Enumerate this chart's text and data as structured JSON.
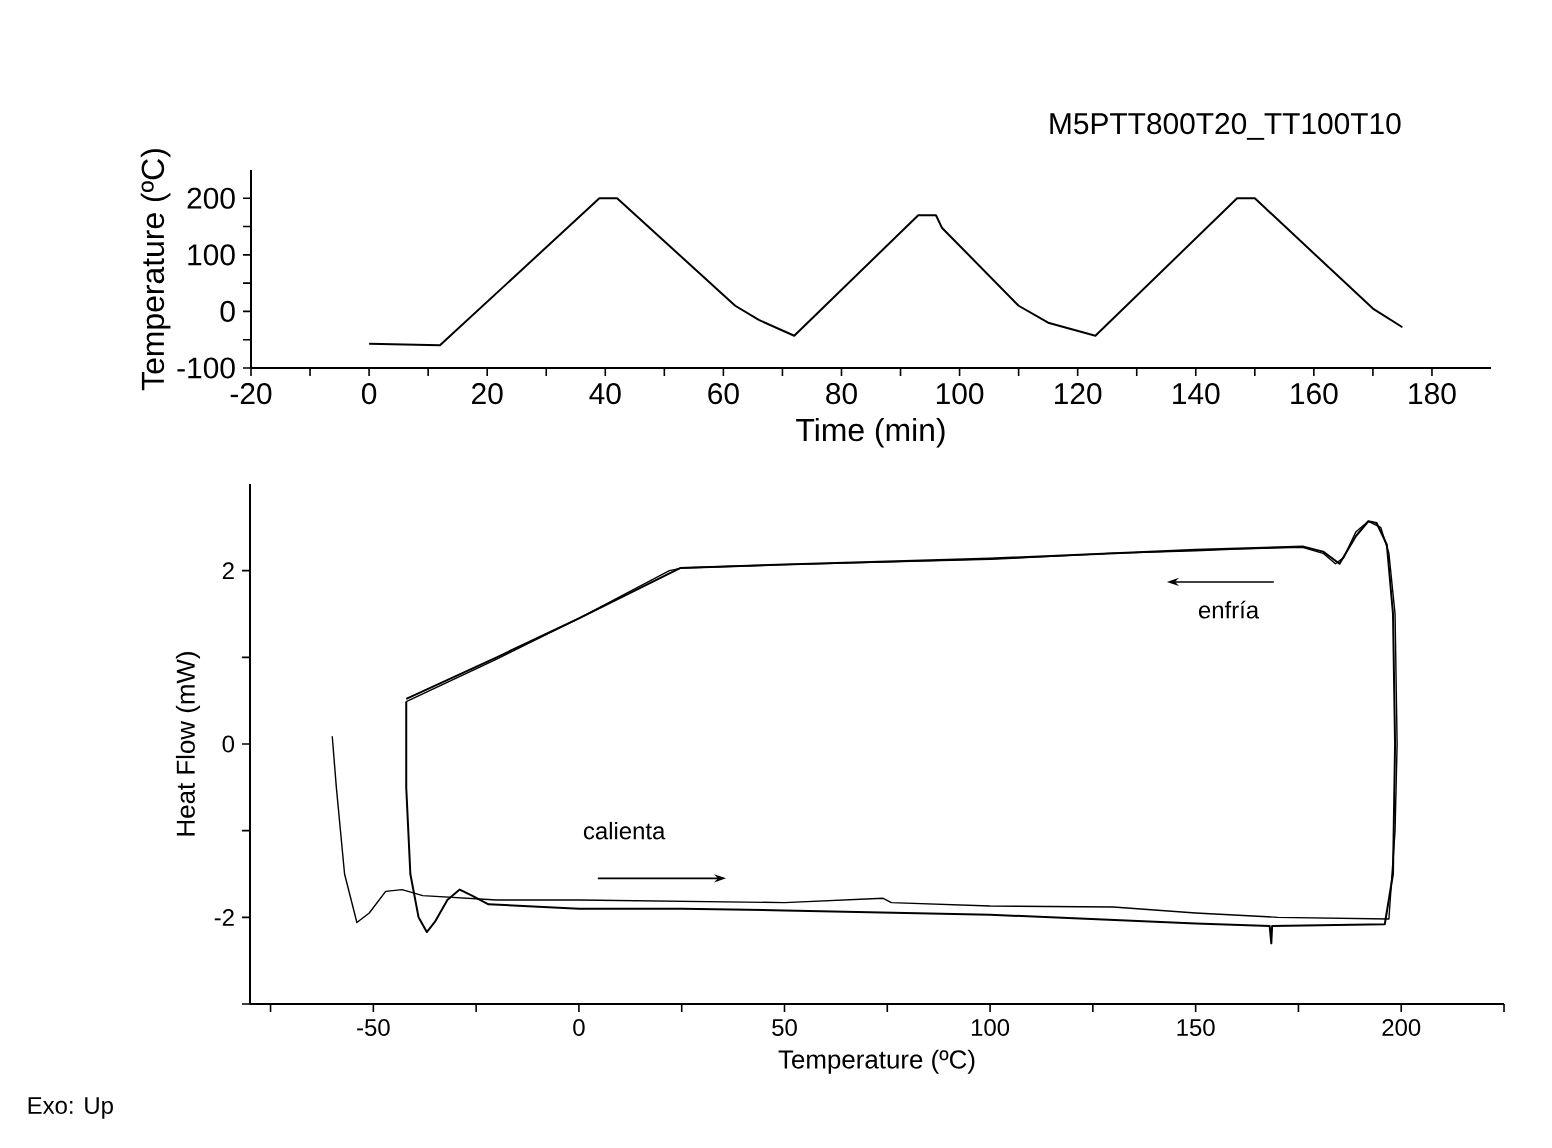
{
  "chart_data": [
    {
      "type": "line",
      "xlabel": "Time (min)",
      "ylabel": "Temperature (ºC)",
      "annotations": [
        "M5PTT800T20_TT100T10"
      ],
      "xlim": [
        -20,
        190
      ],
      "ylim": [
        -100,
        250
      ],
      "xticks": [
        -20,
        0,
        20,
        40,
        60,
        80,
        100,
        120,
        140,
        160,
        180,
        {
          "value": -10,
          "label": null
        },
        {
          "value": 10,
          "label": null
        },
        {
          "value": 30,
          "label": null
        },
        {
          "value": 50,
          "label": null
        },
        {
          "value": 70,
          "label": null
        },
        {
          "value": 90,
          "label": null
        },
        {
          "value": 110,
          "label": null
        },
        {
          "value": 130,
          "label": null
        },
        {
          "value": 150,
          "label": null
        },
        {
          "value": 170,
          "label": null
        }
      ],
      "yticks": [
        -100,
        0,
        100,
        200,
        {
          "value": -50,
          "label": null
        },
        {
          "value": 50,
          "label": null
        },
        {
          "value": 150,
          "label": null
        }
      ],
      "grid": false,
      "marker": "none",
      "line_style": "solid",
      "series": [
        {
          "color": "#000000",
          "x": [
            0,
            12,
            39,
            42,
            62,
            66,
            72,
            93,
            96,
            97,
            110,
            115,
            123,
            147,
            150,
            170,
            175
          ],
          "values": [
            -57,
            -60,
            200,
            200,
            10,
            -15,
            -43,
            170,
            170,
            148,
            10,
            -20,
            -43,
            200,
            200,
            5,
            -28
          ]
        }
      ]
    },
    {
      "type": "line",
      "xlabel": "Temperature (ºC)",
      "ylabel": "Heat Flow (mW)",
      "annotations": [
        "enfría",
        "calienta",
        "Exo: Up"
      ],
      "xlim": [
        -80,
        225
      ],
      "ylim": [
        -3,
        3
      ],
      "xticks": [
        -50,
        0,
        50,
        100,
        150,
        200,
        {
          "value": -75,
          "label": null
        },
        {
          "value": -25,
          "label": null
        },
        {
          "value": 25,
          "label": null
        },
        {
          "value": 75,
          "label": null
        },
        {
          "value": 125,
          "label": null
        },
        {
          "value": 175,
          "label": null
        },
        {
          "value": 225,
          "label": null
        }
      ],
      "yticks": [
        -2,
        0,
        2,
        {
          "value": -3,
          "label": null
        },
        {
          "value": -1,
          "label": null
        },
        {
          "value": 1,
          "label": null
        }
      ],
      "grid": false,
      "marker": "none",
      "line_style": "solid",
      "series": [
        {
          "color": "#000000",
          "x": [
            -60,
            -59,
            -57,
            -54,
            -51,
            -47,
            -43,
            -38,
            -20,
            0,
            50,
            74,
            76,
            100,
            130,
            150,
            170,
            197,
            198.5,
            199,
            198.5,
            197,
            195,
            192,
            189,
            186,
            184,
            181,
            176,
            160,
            150,
            129,
            100,
            50,
            25,
            22,
            0,
            -20,
            -42
          ],
          "values": [
            0.09,
            -0.5,
            -1.5,
            -2.06,
            -1.95,
            -1.7,
            -1.68,
            -1.75,
            -1.8,
            -1.8,
            -1.83,
            -1.78,
            -1.83,
            -1.87,
            -1.88,
            -1.95,
            -2.0,
            -2.02,
            -1.0,
            0,
            1.5,
            2.2,
            2.5,
            2.57,
            2.45,
            2.15,
            2.08,
            2.2,
            2.27,
            2.25,
            2.23,
            2.2,
            2.13,
            2.07,
            2.03,
            2.0,
            1.45,
            0.98,
            0.49
          ]
        },
        {
          "color": "#000000",
          "x": [
            -42,
            -42,
            -41,
            -39,
            -37,
            -35,
            -32,
            -29,
            -26,
            -22,
            0,
            25,
            50,
            100,
            150,
            168,
            168.4,
            168.6,
            196,
            198,
            198.5,
            198,
            196.5,
            194,
            192,
            189,
            185,
            181,
            176,
            150,
            100,
            50,
            24.6,
            0,
            -20,
            -42
          ],
          "values": [
            0.49,
            -0.5,
            -1.5,
            -2.0,
            -2.17,
            -2.05,
            -1.8,
            -1.68,
            -1.75,
            -1.85,
            -1.9,
            -1.9,
            -1.92,
            -1.97,
            -2.07,
            -2.1,
            -2.3,
            -2.1,
            -2.08,
            -1.5,
            0,
            1.5,
            2.3,
            2.55,
            2.57,
            2.4,
            2.08,
            2.22,
            2.28,
            2.24,
            2.14,
            2.07,
            2.03,
            1.45,
            1.0,
            0.52
          ]
        }
      ]
    }
  ]
}
